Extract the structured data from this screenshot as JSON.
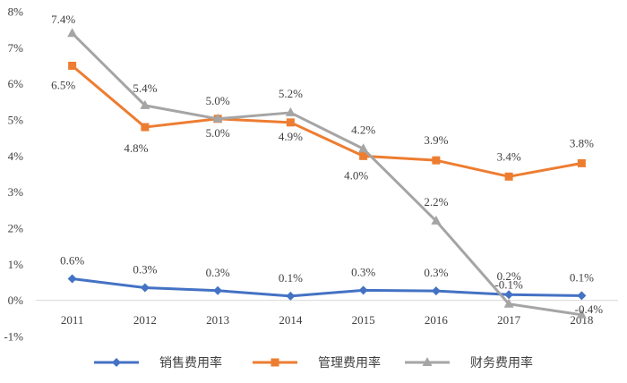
{
  "chart_data": {
    "type": "line",
    "title": "",
    "xlabel": "",
    "ylabel": "",
    "categories": [
      "2011",
      "2012",
      "2013",
      "2014",
      "2015",
      "2016",
      "2017",
      "2018"
    ],
    "ylim": [
      -1,
      8
    ],
    "yticks": [
      "-1%",
      "0%",
      "1%",
      "2%",
      "3%",
      "4%",
      "5%",
      "6%",
      "7%",
      "8%"
    ],
    "grid": false,
    "legend_position": "bottom",
    "series": [
      {
        "name": "销售费用率",
        "color": "#4472C4",
        "marker": "diamond",
        "values": [
          0.6,
          0.35,
          0.27,
          0.12,
          0.28,
          0.26,
          0.16,
          0.13
        ],
        "labels": [
          "0.6%",
          "0.3%",
          "0.3%",
          "0.1%",
          "0.3%",
          "0.3%",
          "0.2%",
          "0.1%"
        ]
      },
      {
        "name": "管理费用率",
        "color": "#ED7D31",
        "marker": "square",
        "values": [
          6.5,
          4.8,
          5.03,
          4.93,
          4.0,
          3.88,
          3.43,
          3.8
        ],
        "labels": [
          "6.5%",
          "4.8%",
          "5.0%",
          "4.9%",
          "4.0%",
          "3.9%",
          "3.4%",
          "3.8%"
        ]
      },
      {
        "name": "财务费用率",
        "color": "#A5A5A5",
        "marker": "triangle",
        "values": [
          7.4,
          5.4,
          5.03,
          5.2,
          4.2,
          2.2,
          -0.1,
          -0.4
        ],
        "labels": [
          "7.4%",
          "5.4%",
          "5.0%",
          "5.2%",
          "4.2%",
          "2.2%",
          "-0.1%",
          "-0.4%"
        ]
      }
    ]
  }
}
